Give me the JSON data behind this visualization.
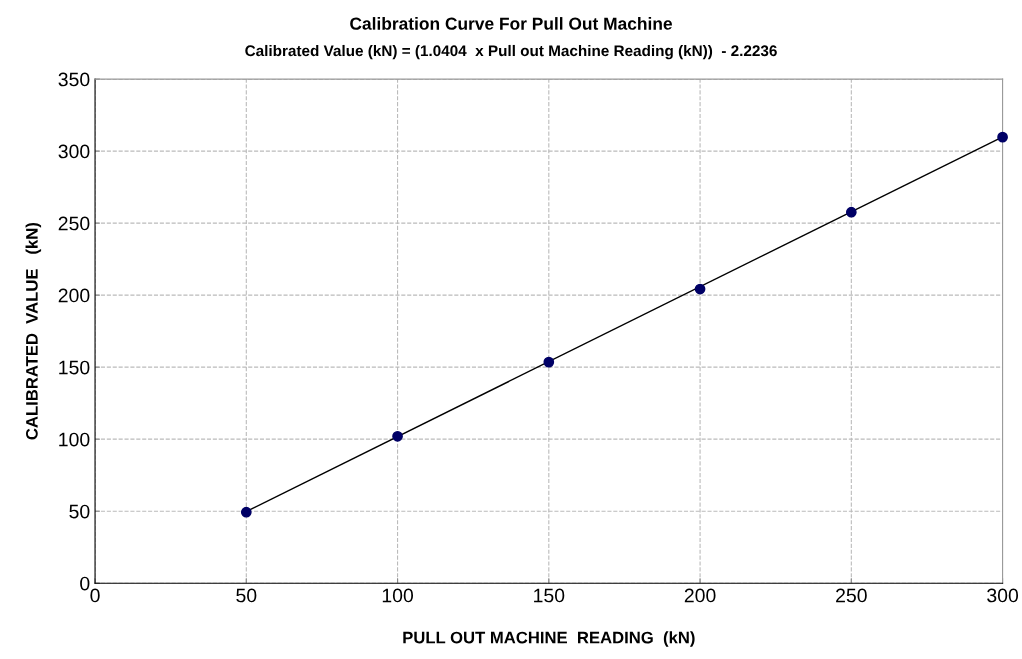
{
  "chart_data": {
    "type": "scatter",
    "title": "Calibration Curve For Pull Out Machine",
    "subtitle": "Calibrated Value (kN) = (1.0404  x Pull out Machine Reading (kN))  - 2.2236",
    "xlabel": "PULL OUT MACHINE  READING  (kN)",
    "ylabel": "CALIBRATED  VALUE   (kN)",
    "series": [
      {
        "type": "line",
        "color": "#000000",
        "x": [
          50,
          300
        ],
        "values": [
          49.8,
          309.9
        ],
        "marker": "none"
      },
      {
        "color": "#000066",
        "x": [
          50,
          100,
          150,
          200,
          250,
          300
        ],
        "values": [
          49.3,
          102,
          153.5,
          204.2,
          257.6,
          309.7
        ],
        "marker": "circle"
      }
    ],
    "xlim": [
      0,
      300
    ],
    "xticks": [
      0,
      50,
      100,
      150,
      200,
      250,
      300
    ],
    "ylim": [
      0,
      350
    ],
    "yticks": [
      0,
      50,
      100,
      150,
      200,
      250,
      300,
      350
    ],
    "grid": true,
    "legend": false
  }
}
